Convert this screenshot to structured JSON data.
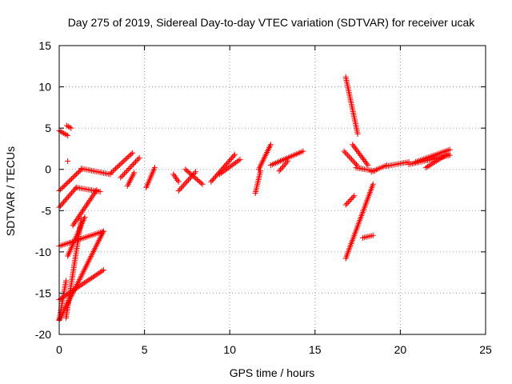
{
  "chart_data": {
    "type": "scatter",
    "title": "Day 275 of 2019, Sidereal Day-to-day VTEC variation (SDTVAR) for receiver ucak",
    "xlabel": "GPS time / hours",
    "ylabel": "SDTVAR / TECUs",
    "xlim": [
      0,
      25
    ],
    "ylim": [
      -20,
      15
    ],
    "xticks": [
      0,
      5,
      10,
      15,
      20,
      25
    ],
    "yticks": [
      -20,
      -15,
      -10,
      -5,
      0,
      5,
      10,
      15
    ],
    "xtick_labels": [
      "0",
      "5",
      "10",
      "15",
      "20",
      "25"
    ],
    "ytick_labels": [
      "-20",
      "-15",
      "-10",
      "-5",
      "0",
      "5",
      "10",
      "15"
    ],
    "grid": true,
    "marker": "+",
    "color": "#ff0000",
    "segments": [
      {
        "x": [
          0.0,
          0.5
        ],
        "y": [
          4.7,
          4.1
        ]
      },
      {
        "x": [
          0.45,
          0.7
        ],
        "y": [
          5.3,
          5.0
        ]
      },
      {
        "x": [
          0.5
        ],
        "y": [
          1.0
        ]
      },
      {
        "x": [
          0.0,
          1.3
        ],
        "y": [
          -2.6,
          0.0
        ]
      },
      {
        "x": [
          0.0,
          1.0
        ],
        "y": [
          -4.6,
          -2.2
        ]
      },
      {
        "x": [
          0.0,
          2.6
        ],
        "y": [
          -9.3,
          -7.5
        ]
      },
      {
        "x": [
          0.0,
          2.6
        ],
        "y": [
          -15.8,
          -12.2
        ]
      },
      {
        "x": [
          0.0,
          2.6
        ],
        "y": [
          -18.3,
          -7.5
        ]
      },
      {
        "x": [
          0.0,
          0.4
        ],
        "y": [
          -18.2,
          -13.5
        ]
      },
      {
        "x": [
          0.4,
          1.3
        ],
        "y": [
          -18.0,
          -6.0
        ]
      },
      {
        "x": [
          0.5,
          1.5
        ],
        "y": [
          -10.5,
          -5.8
        ]
      },
      {
        "x": [
          0.8,
          2.2
        ],
        "y": [
          -6.8,
          -2.5
        ]
      },
      {
        "x": [
          1.0,
          2.4
        ],
        "y": [
          -2.2,
          -2.7
        ]
      },
      {
        "x": [
          1.3,
          3.0
        ],
        "y": [
          0.1,
          -0.6
        ]
      },
      {
        "x": [
          3.0,
          4.3
        ],
        "y": [
          -0.5,
          2.0
        ]
      },
      {
        "x": [
          3.6,
          4.7
        ],
        "y": [
          -1.0,
          1.4
        ]
      },
      {
        "x": [
          4.0,
          4.4
        ],
        "y": [
          -2.0,
          -0.4
        ]
      },
      {
        "x": [
          5.1,
          5.6
        ],
        "y": [
          -2.2,
          0.2
        ]
      },
      {
        "x": [
          6.7,
          7.0
        ],
        "y": [
          -0.6,
          -1.5
        ]
      },
      {
        "x": [
          7.0,
          8.0
        ],
        "y": [
          -2.6,
          -0.3
        ]
      },
      {
        "x": [
          7.4,
          8.4
        ],
        "y": [
          0.0,
          -1.8
        ]
      },
      {
        "x": [
          8.9,
          10.3
        ],
        "y": [
          -1.5,
          1.8
        ]
      },
      {
        "x": [
          9.4,
          10.6
        ],
        "y": [
          -0.6,
          1.2
        ]
      },
      {
        "x": [
          11.5,
          11.8
        ],
        "y": [
          -2.9,
          -0.2
        ]
      },
      {
        "x": [
          11.7,
          12.4
        ],
        "y": [
          0.0,
          3.0
        ]
      },
      {
        "x": [
          12.4,
          14.3
        ],
        "y": [
          0.5,
          2.2
        ]
      },
      {
        "x": [
          12.9,
          13.4
        ],
        "y": [
          -0.2,
          1.0
        ]
      },
      {
        "x": [
          16.8,
          17.5
        ],
        "y": [
          11.2,
          4.3
        ]
      },
      {
        "x": [
          17.2,
          18.1
        ],
        "y": [
          3.0,
          0.5
        ]
      },
      {
        "x": [
          16.8,
          18.4
        ],
        "y": [
          -10.8,
          -1.8
        ]
      },
      {
        "x": [
          16.8,
          17.3
        ],
        "y": [
          -4.3,
          -3.2
        ]
      },
      {
        "x": [
          16.7,
          17.5
        ],
        "y": [
          2.2,
          0.4
        ]
      },
      {
        "x": [
          17.4,
          18.5
        ],
        "y": [
          0.2,
          -0.2
        ]
      },
      {
        "x": [
          17.8,
          18.4
        ],
        "y": [
          -8.3,
          -8.0
        ]
      },
      {
        "x": [
          18.3,
          19.2
        ],
        "y": [
          -0.3,
          0.5
        ]
      },
      {
        "x": [
          19.2,
          20.5
        ],
        "y": [
          0.4,
          0.9
        ]
      },
      {
        "x": [
          20.5,
          22.9
        ],
        "y": [
          0.6,
          1.7
        ]
      },
      {
        "x": [
          20.9,
          22.9
        ],
        "y": [
          0.9,
          2.4
        ]
      },
      {
        "x": [
          21.5,
          22.8
        ],
        "y": [
          0.2,
          1.9
        ]
      }
    ]
  }
}
